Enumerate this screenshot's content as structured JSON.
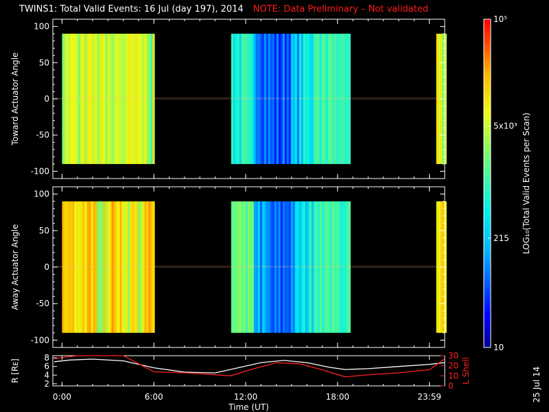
{
  "title": {
    "main": "TWINS1: Total Valid Events: 16 Jul (day 197), 2014",
    "note": "NOTE: Data Preliminary – Not validated"
  },
  "colorbar": {
    "label": "LOG₁₀(Total Valid Events per Scan)",
    "ticks": [
      "10⁵",
      "5x10³",
      "215",
      "10"
    ],
    "scale": "log",
    "range": [
      10,
      100000
    ]
  },
  "side_date": "25 Jul 14",
  "chart_data": [
    {
      "type": "heatmap",
      "ylabel": "Toward Actuator Angle",
      "ylim": [
        -110,
        110
      ],
      "yticks": [
        "100",
        "50",
        "0",
        "-50",
        "-100"
      ],
      "angle_range": [
        -90,
        90
      ],
      "data_intervals_hours": [
        [
          0.0,
          5.95
        ],
        [
          11.05,
          18.75
        ],
        [
          24.45,
          25.0
        ]
      ],
      "level": "mixed: ~3x10^3-10^4 at 0-6h and after 23:59, ~100-700 at 11-19h"
    },
    {
      "type": "heatmap",
      "ylabel": "Away Actuator Angle",
      "ylim": [
        -110,
        110
      ],
      "yticks": [
        "100",
        "50",
        "0",
        "-50",
        "-100"
      ],
      "angle_range": [
        -90,
        90
      ],
      "data_intervals_hours": [
        [
          0.0,
          5.95
        ],
        [
          11.05,
          18.75
        ],
        [
          24.45,
          25.0
        ]
      ],
      "level": "~10^4 at 0-6h and after 23:59, ~100-1000 at 11-19h"
    },
    {
      "type": "line",
      "ylabel_left": "R [Rᴇ]",
      "ylabel_right": "L Shell",
      "yticks_left": [
        "8",
        "6",
        "4",
        "2"
      ],
      "yticks_right": [
        "30",
        "20",
        "10",
        "0"
      ],
      "ylim_left": [
        1.5,
        8.5
      ],
      "ylim_right": [
        0,
        30
      ],
      "xlabel": "Time (UT)",
      "xticks": [
        "0:00",
        "6:00",
        "12:00",
        "18:00",
        "23:59"
      ],
      "xlim_hours": [
        -0.6,
        25.0
      ],
      "series": [
        {
          "axis": "left",
          "color": "#ffffff",
          "x": [
            -0.5,
            0.5,
            2,
            4,
            6,
            8,
            10,
            11.5,
            13,
            14.5,
            16,
            17.5,
            18.5,
            20,
            22,
            24,
            25
          ],
          "y": [
            7.1,
            7.5,
            7.7,
            7.3,
            5.7,
            4.7,
            4.5,
            5.7,
            6.9,
            7.4,
            6.9,
            5.8,
            5.3,
            5.5,
            6.0,
            6.5,
            6.9
          ]
        },
        {
          "axis": "right",
          "color": "#ff2020",
          "x": [
            -0.5,
            1,
            2.5,
            4,
            6,
            8,
            11,
            12.5,
            14,
            15.5,
            17,
            18.5,
            20,
            22,
            24,
            25
          ],
          "y": [
            27,
            30,
            30,
            30,
            14,
            13,
            10,
            17,
            23,
            22,
            16,
            9,
            11,
            13,
            16,
            27
          ]
        }
      ]
    }
  ]
}
